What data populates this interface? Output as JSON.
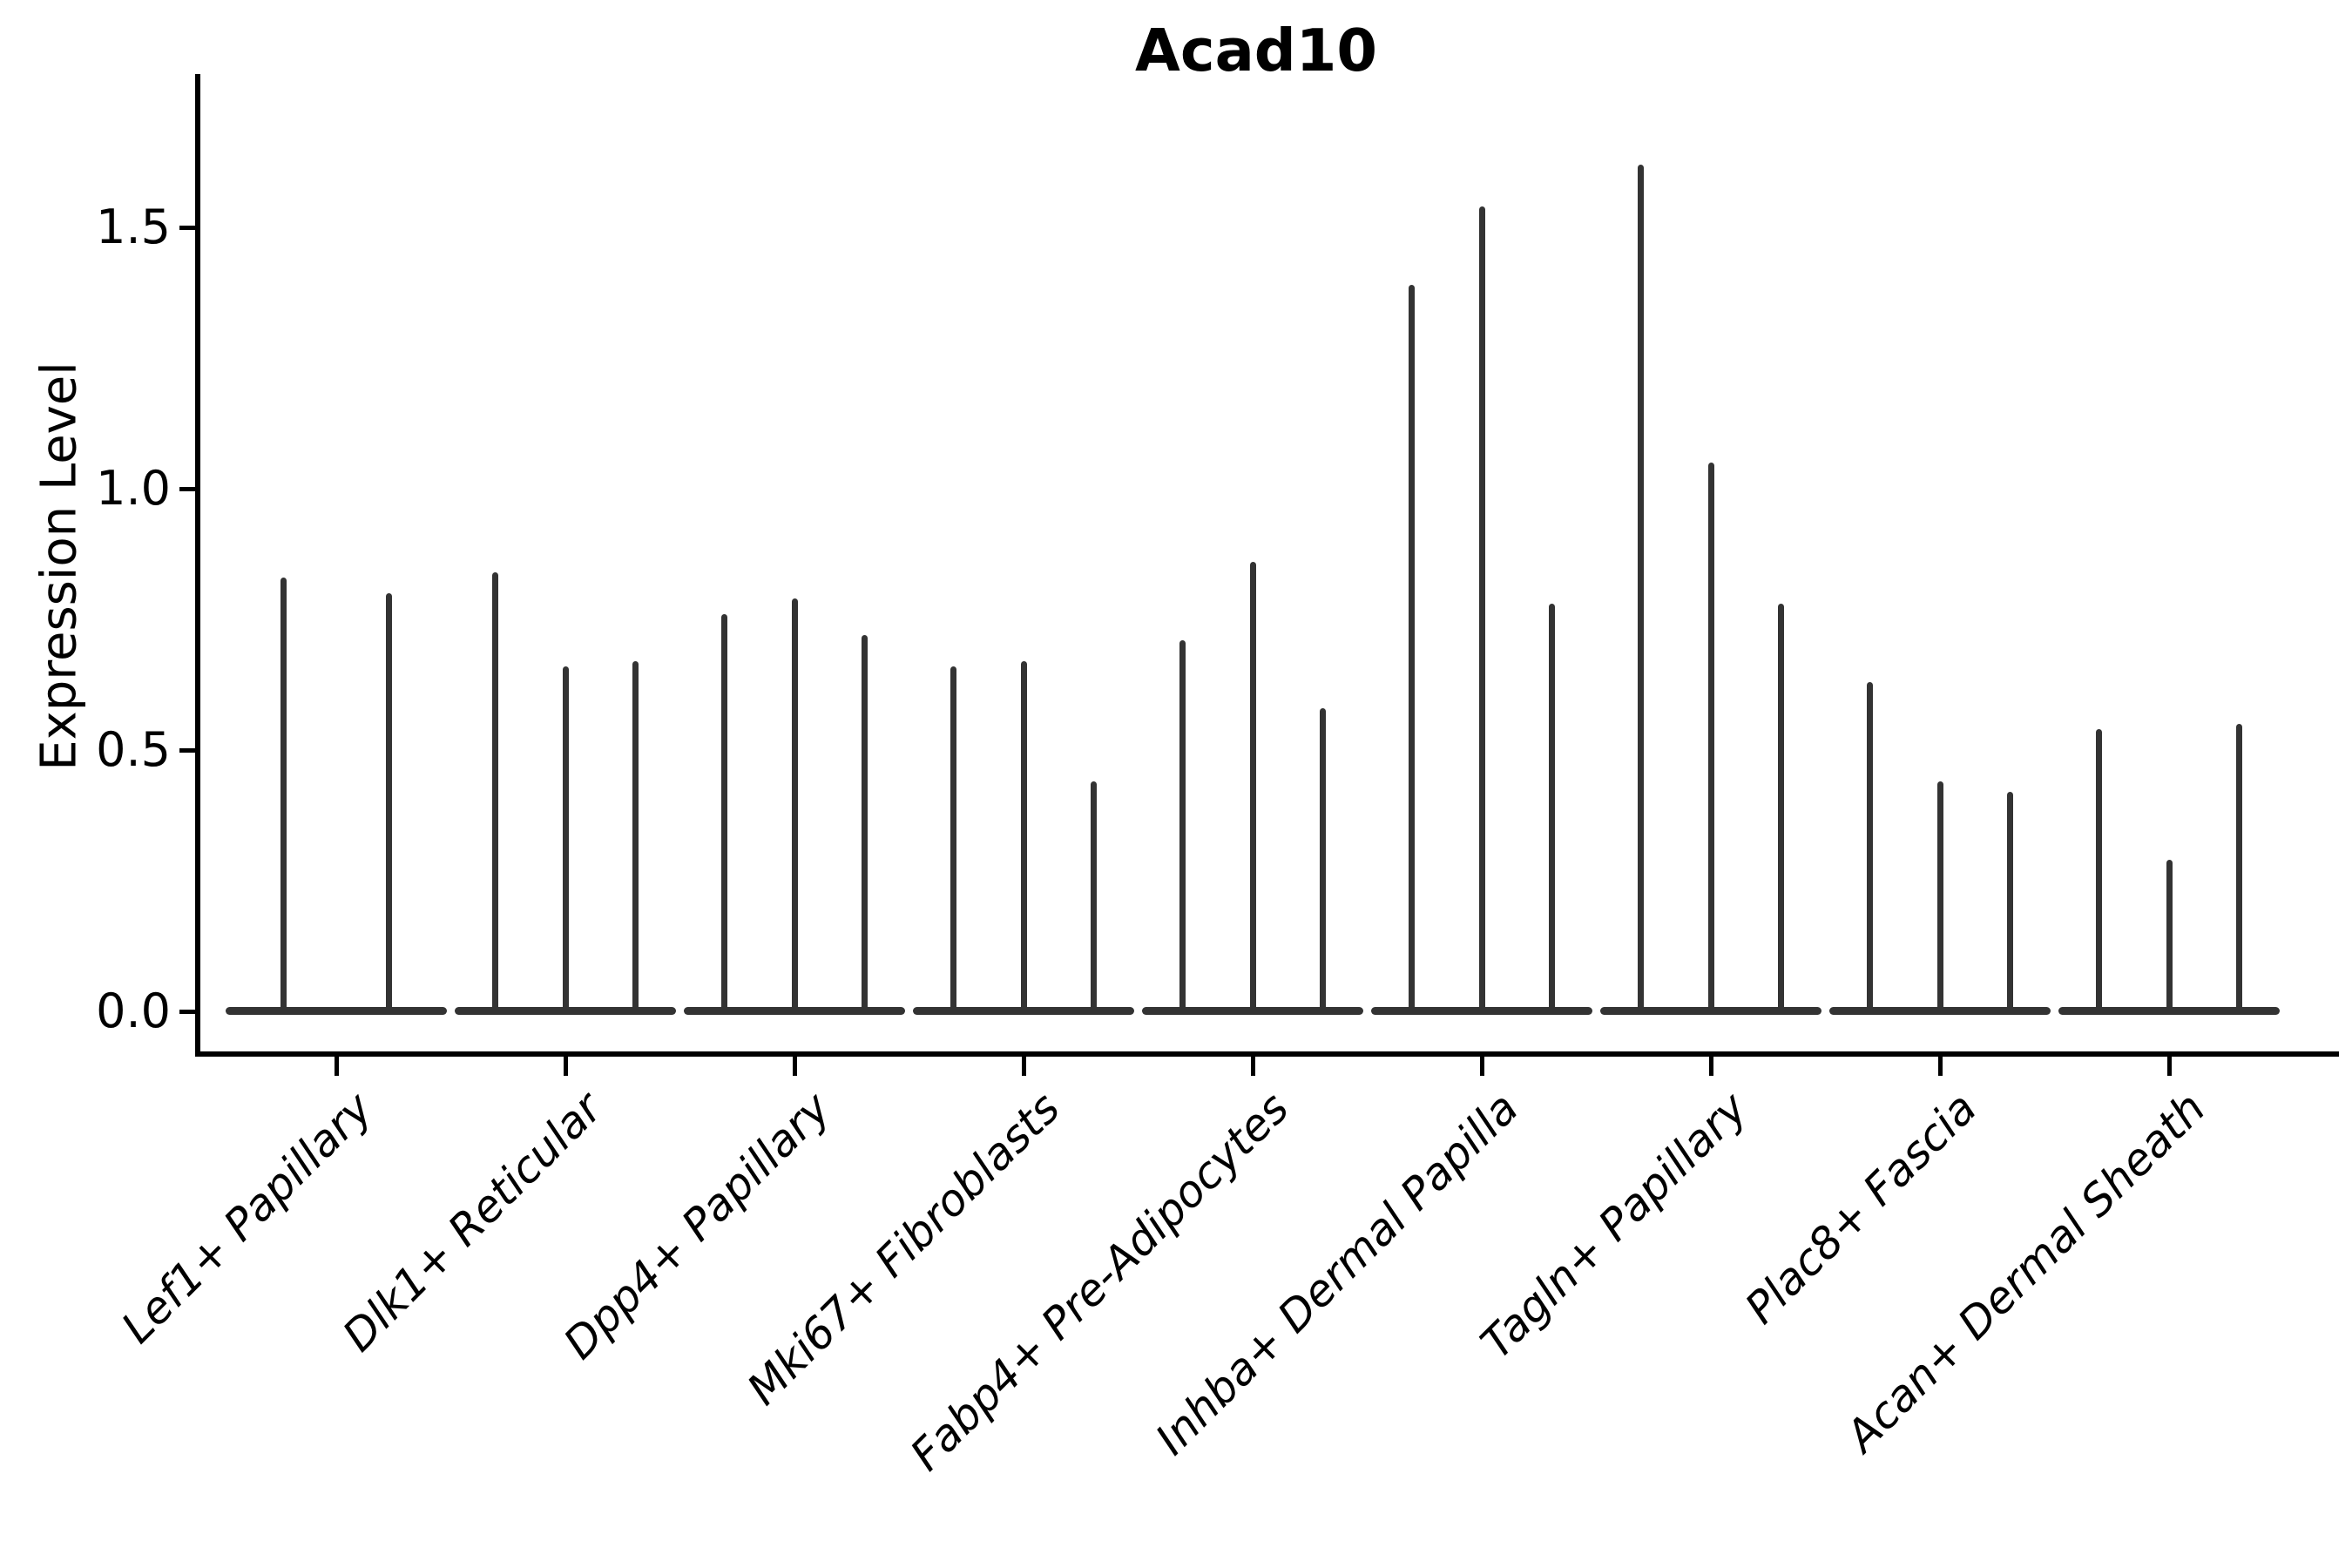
{
  "chart_data": {
    "type": "violin",
    "title": "Acad10",
    "ylabel": "Expression Level",
    "xlabel": "",
    "categories": [
      "Lef1+ Papillary",
      "Dlk1+ Reticular",
      "Dpp4+ Papillary",
      "Mki67+ Fibroblasts",
      "Fabp4+ Pre-Adipocytes",
      "Inhba+ Dermal Papilla",
      "Tagln+ Papillary",
      "Plac8+ Fascia",
      "Acan+ Dermal Sheath"
    ],
    "violin_maxima": [
      [
        0.83,
        0.8
      ],
      [
        0.84,
        0.66,
        0.67
      ],
      [
        0.76,
        0.79,
        0.72
      ],
      [
        0.66,
        0.67,
        0.44
      ],
      [
        0.71,
        0.86,
        0.58
      ],
      [
        1.39,
        1.54,
        0.78
      ],
      [
        1.62,
        1.05,
        0.78
      ],
      [
        0.63,
        0.44,
        0.42
      ],
      [
        0.54,
        0.29,
        0.55
      ]
    ],
    "baseline_value": 0.0,
    "yticks": [
      0.0,
      0.5,
      1.0,
      1.5
    ],
    "ytick_labels": [
      "0.0",
      "0.5",
      "1.0",
      "1.5"
    ],
    "ylim": [
      -0.09,
      1.79
    ],
    "grid": false,
    "legend": false,
    "colors": {
      "violin": "#333333",
      "axis": "#000000",
      "text": "#000000",
      "background": "#ffffff"
    }
  }
}
